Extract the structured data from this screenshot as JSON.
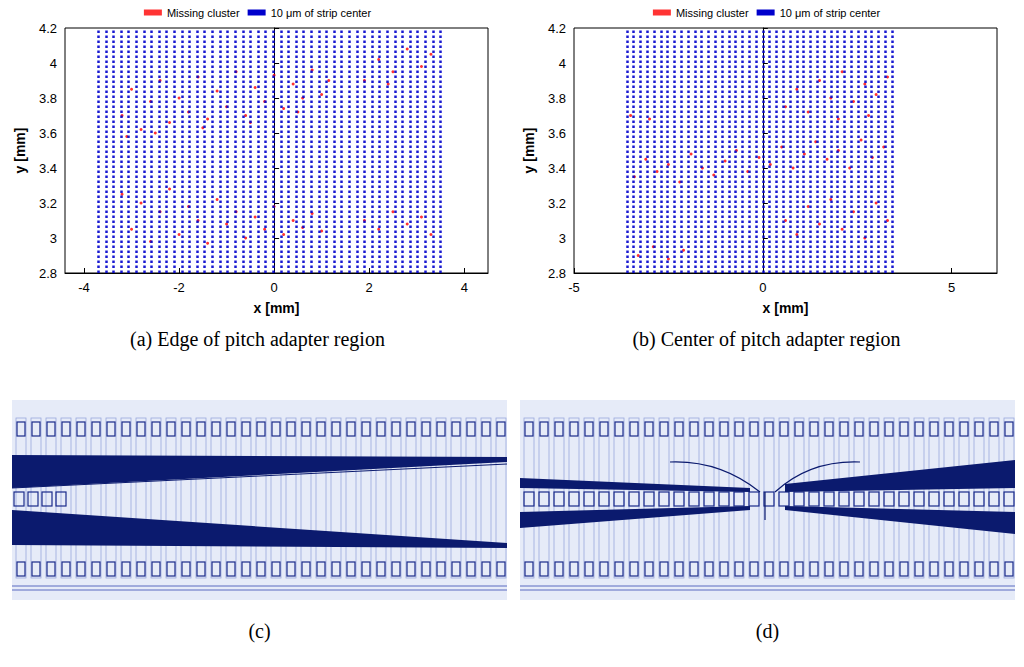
{
  "chart_data": [
    {
      "type": "scatter",
      "title": "(a) Edge of pitch adapter region",
      "xlabel": "x [mm]",
      "ylabel": "y [mm]",
      "xlim": [
        -4.4,
        4.5
      ],
      "xticks": [
        -4,
        -2,
        0,
        2,
        4
      ],
      "ylim": [
        2.8,
        4.2
      ],
      "yticks": [
        2.8,
        3,
        3.2,
        3.4,
        3.6,
        3.8,
        4,
        4.2
      ],
      "grid": false,
      "legend": "top",
      "series": [
        {
          "name": "Missing cluster",
          "type": "scatter",
          "color": "#ff0000",
          "marker": "circle",
          "values": [
            [
              -3.2,
              3.7
            ],
            [
              -3.0,
              3.85
            ],
            [
              -2.8,
              3.62
            ],
            [
              -2.6,
              3.78
            ],
            [
              -2.4,
              3.9
            ],
            [
              -2.2,
              3.66
            ],
            [
              -2.0,
              3.8
            ],
            [
              -1.8,
              3.72
            ],
            [
              -1.6,
              3.92
            ],
            [
              -1.4,
              3.68
            ],
            [
              -1.2,
              3.84
            ],
            [
              -1.0,
              3.75
            ],
            [
              -0.8,
              3.95
            ],
            [
              -0.6,
              3.7
            ],
            [
              -0.4,
              3.86
            ],
            [
              -0.2,
              3.78
            ],
            [
              0.0,
              3.93
            ],
            [
              0.2,
              3.74
            ],
            [
              0.4,
              3.88
            ],
            [
              0.6,
              3.8
            ],
            [
              0.8,
              3.96
            ],
            [
              1.0,
              3.82
            ],
            [
              1.15,
              3.9
            ],
            [
              -3.1,
              3.58
            ],
            [
              -2.5,
              3.6
            ],
            [
              -1.5,
              3.63
            ],
            [
              -0.5,
              3.66
            ],
            [
              0.5,
              3.72
            ],
            [
              1.9,
              3.9
            ],
            [
              2.2,
              4.02
            ],
            [
              2.5,
              3.95
            ],
            [
              2.8,
              4.08
            ],
            [
              3.1,
              3.98
            ],
            [
              3.3,
              4.05
            ],
            [
              2.4,
              3.88
            ],
            [
              -3.2,
              3.25
            ],
            [
              -3.0,
              3.05
            ],
            [
              -2.8,
              3.2
            ],
            [
              -2.6,
              2.98
            ],
            [
              -2.4,
              3.15
            ],
            [
              -2.2,
              3.28
            ],
            [
              -2.0,
              3.02
            ],
            [
              -1.8,
              3.18
            ],
            [
              -1.6,
              3.1
            ],
            [
              -1.4,
              2.97
            ],
            [
              -1.2,
              3.22
            ],
            [
              -1.0,
              3.08
            ],
            [
              -0.8,
              3.15
            ],
            [
              -0.6,
              3.0
            ],
            [
              -0.4,
              3.12
            ],
            [
              -0.2,
              3.05
            ],
            [
              0.0,
              3.18
            ],
            [
              0.2,
              3.02
            ],
            [
              0.4,
              3.1
            ],
            [
              0.6,
              3.06
            ],
            [
              0.8,
              3.14
            ],
            [
              1.0,
              3.04
            ],
            [
              1.9,
              3.1
            ],
            [
              2.2,
              3.05
            ],
            [
              2.5,
              3.15
            ],
            [
              2.8,
              3.08
            ],
            [
              3.1,
              3.12
            ],
            [
              3.3,
              3.02
            ]
          ]
        },
        {
          "name": "10 μm of strip center",
          "type": "vline",
          "color": "#0000cc",
          "x": [
            -3.7,
            -3.54,
            -3.38,
            -3.22,
            -3.06,
            -2.9,
            -2.74,
            -2.58,
            -2.42,
            -2.26,
            -2.1,
            -1.94,
            -1.78,
            -1.62,
            -1.46,
            -1.3,
            -1.14,
            -0.98,
            -0.82,
            -0.66,
            -0.5,
            -0.34,
            -0.18,
            -0.02,
            0.14,
            0.3,
            0.46,
            0.62,
            0.78,
            0.94,
            1.1,
            1.26,
            1.42,
            1.58,
            1.74,
            1.9,
            2.06,
            2.22,
            2.38,
            2.54,
            2.7,
            2.86,
            3.02,
            3.18,
            3.34,
            3.5
          ]
        }
      ]
    },
    {
      "type": "scatter",
      "title": "(b) Center of pitch adapter region",
      "xlabel": "x [mm]",
      "ylabel": "y [mm]",
      "xlim": [
        -5,
        6.2
      ],
      "xticks": [
        -5,
        0,
        5
      ],
      "ylim": [
        2.8,
        4.2
      ],
      "yticks": [
        2.8,
        3,
        3.2,
        3.4,
        3.6,
        3.8,
        4,
        4.2
      ],
      "grid": false,
      "legend": "top",
      "series": [
        {
          "name": "Missing cluster",
          "type": "scatter",
          "color": "#ff0000",
          "marker": "circle",
          "values": [
            [
              -3.4,
              3.35
            ],
            [
              -3.1,
              3.45
            ],
            [
              -2.8,
              3.38
            ],
            [
              -2.5,
              3.42
            ],
            [
              -2.2,
              3.32
            ],
            [
              -1.9,
              3.48
            ],
            [
              -1.6,
              3.4
            ],
            [
              -1.3,
              3.36
            ],
            [
              -1.0,
              3.44
            ],
            [
              -0.7,
              3.5
            ],
            [
              -0.4,
              3.38
            ],
            [
              -0.1,
              3.46
            ],
            [
              0.2,
              3.42
            ],
            [
              0.5,
              3.52
            ],
            [
              0.8,
              3.4
            ],
            [
              1.1,
              3.48
            ],
            [
              1.4,
              3.55
            ],
            [
              1.7,
              3.45
            ],
            [
              2.0,
              3.5
            ],
            [
              2.3,
              3.4
            ],
            [
              2.6,
              3.56
            ],
            [
              2.9,
              3.46
            ],
            [
              3.2,
              3.52
            ],
            [
              0.6,
              3.75
            ],
            [
              0.9,
              3.85
            ],
            [
              1.2,
              3.72
            ],
            [
              1.5,
              3.9
            ],
            [
              1.8,
              3.8
            ],
            [
              2.1,
              3.95
            ],
            [
              2.4,
              3.78
            ],
            [
              2.7,
              3.88
            ],
            [
              3.0,
              3.82
            ],
            [
              3.3,
              3.92
            ],
            [
              2.0,
              3.68
            ],
            [
              2.8,
              3.7
            ],
            [
              0.6,
              3.1
            ],
            [
              0.9,
              3.02
            ],
            [
              1.2,
              3.18
            ],
            [
              1.5,
              3.08
            ],
            [
              1.8,
              3.22
            ],
            [
              2.1,
              3.05
            ],
            [
              2.4,
              3.15
            ],
            [
              2.7,
              3.0
            ],
            [
              3.0,
              3.2
            ],
            [
              3.3,
              3.1
            ],
            [
              -3.3,
              2.9
            ],
            [
              -2.9,
              2.95
            ],
            [
              -2.5,
              2.88
            ],
            [
              -2.1,
              2.93
            ],
            [
              -3.5,
              3.7
            ],
            [
              -3.0,
              3.68
            ]
          ]
        },
        {
          "name": "10 μm of strip center",
          "type": "vline",
          "color": "#0000cc",
          "x": [
            -3.6,
            -3.42,
            -3.24,
            -3.06,
            -2.88,
            -2.7,
            -2.52,
            -2.34,
            -2.16,
            -1.98,
            -1.8,
            -1.62,
            -1.44,
            -1.26,
            -1.08,
            -0.9,
            -0.72,
            -0.54,
            -0.36,
            -0.18,
            0,
            0.18,
            0.36,
            0.54,
            0.72,
            0.9,
            1.08,
            1.26,
            1.44,
            1.62,
            1.8,
            1.98,
            2.16,
            2.34,
            2.52,
            2.7,
            2.88,
            3.06,
            3.24,
            3.42
          ]
        }
      ]
    }
  ],
  "panels": [
    {
      "caption": "(c)"
    },
    {
      "caption": "(d)"
    }
  ]
}
